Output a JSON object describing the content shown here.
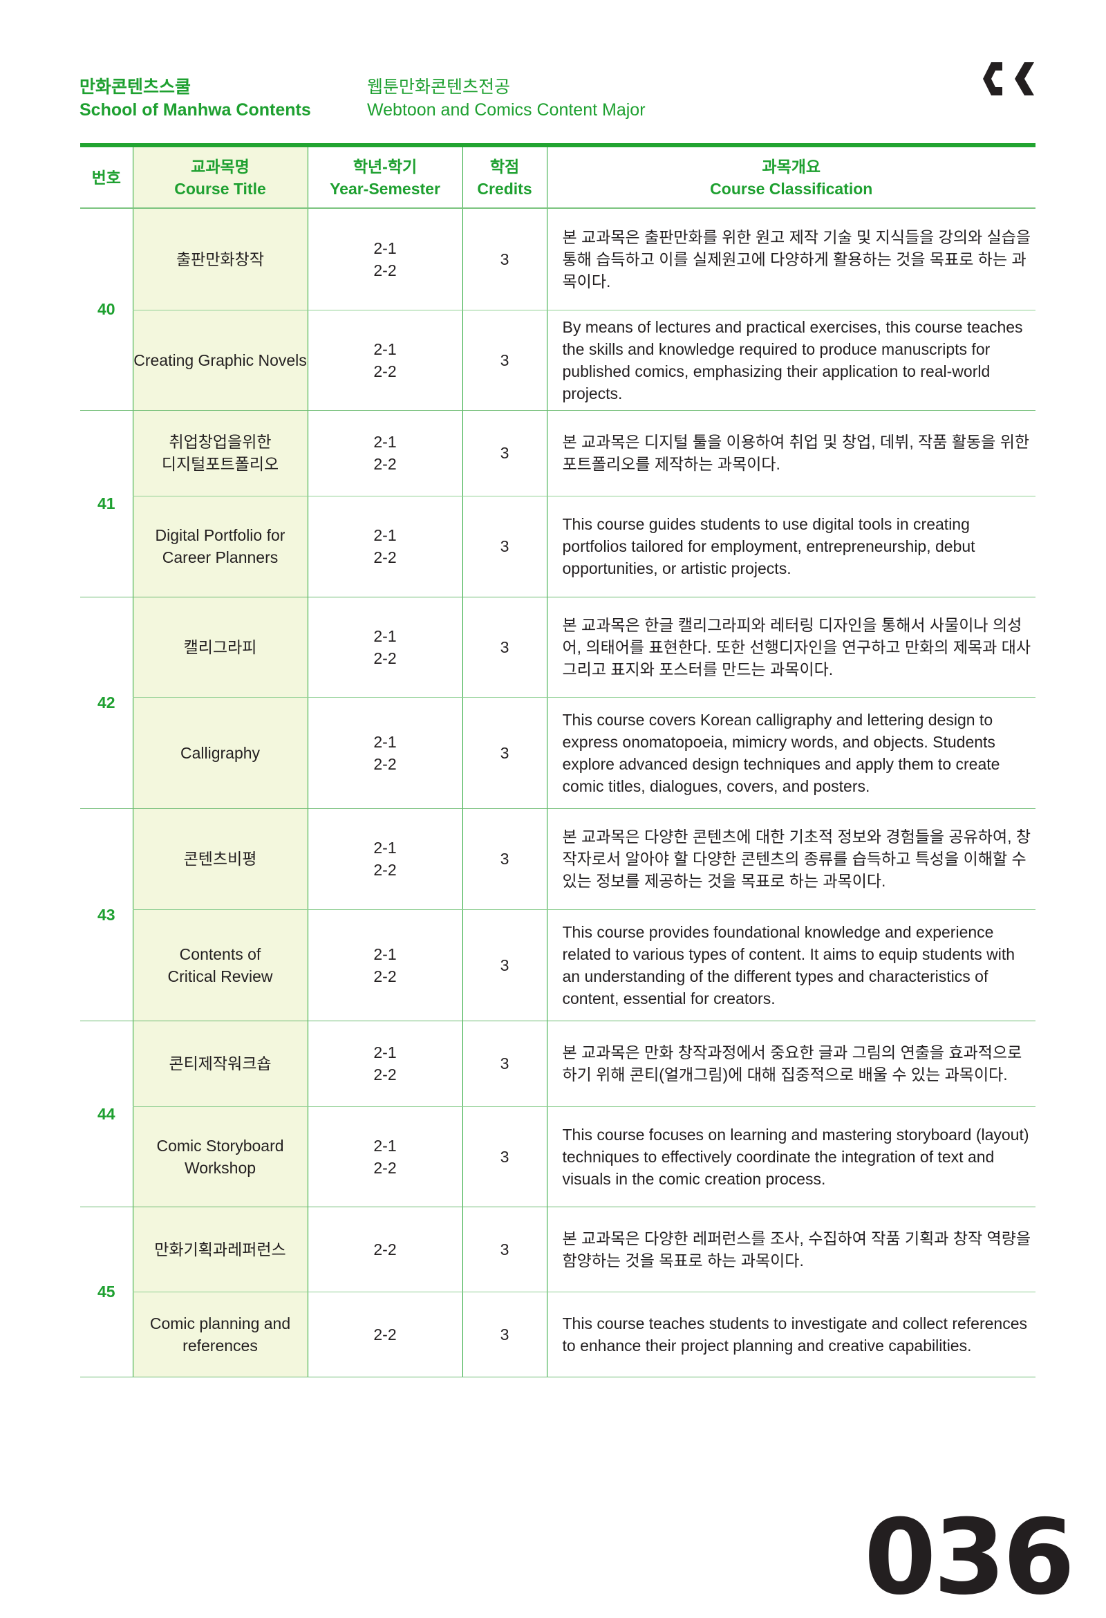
{
  "header": {
    "school_ko": "만화콘텐츠스쿨",
    "school_en": "School of Manhwa Contents",
    "major_ko": "웹툰만화콘텐츠전공",
    "major_en": "Webtoon and Comics Content Major",
    "logo": "ck-logo"
  },
  "columns": [
    {
      "ko": "번호",
      "en": ""
    },
    {
      "ko": "교과목명",
      "en": "Course Title"
    },
    {
      "ko": "학년-학기",
      "en": "Year-Semester"
    },
    {
      "ko": "학점",
      "en": "Credits"
    },
    {
      "ko": "과목개요",
      "en": "Course Classification"
    }
  ],
  "courses": [
    {
      "no": "40",
      "ko": {
        "title": "출판만화창작",
        "sem": "2-1\n2-2",
        "credits": "3",
        "desc": "본 교과목은 출판만화를 위한 원고 제작 기술 및 지식들을 강의와 실습을 통해 습득하고 이를 실제원고에 다양하게 활용하는 것을 목표로 하는 과목이다."
      },
      "en": {
        "title": "Creating Graphic Novels",
        "sem": "2-1\n2-2",
        "credits": "3",
        "desc": "By means of lectures and practical exercises, this course teaches the skills and knowledge required to produce manuscripts for published comics, emphasizing their application to real-world projects."
      }
    },
    {
      "no": "41",
      "ko": {
        "title": "취업창업을위한\n디지털포트폴리오",
        "sem": "2-1\n2-2",
        "credits": "3",
        "desc": "본 교과목은 디지털 툴을 이용하여 취업 및 창업, 데뷔, 작품 활동을 위한 포트폴리오를 제작하는 과목이다."
      },
      "en": {
        "title": "Digital Portfolio for\nCareer Planners",
        "sem": "2-1\n2-2",
        "credits": "3",
        "desc": "This course guides students to use digital tools in creating portfolios tailored for employment, entrepreneurship, debut opportunities, or artistic projects."
      }
    },
    {
      "no": "42",
      "ko": {
        "title": "캘리그라피",
        "sem": "2-1\n2-2",
        "credits": "3",
        "desc": "본 교과목은 한글 캘리그라피와 레터링 디자인을 통해서 사물이나 의성어, 의태어를 표현한다. 또한 선행디자인을 연구하고 만화의 제목과 대사 그리고 표지와 포스터를 만드는 과목이다."
      },
      "en": {
        "title": "Calligraphy",
        "sem": "2-1\n2-2",
        "credits": "3",
        "desc": "This course covers Korean calligraphy and lettering design to express onomatopoeia, mimicry words, and objects. Students explore advanced design techniques and apply them to create comic titles, dialogues, covers, and posters."
      }
    },
    {
      "no": "43",
      "ko": {
        "title": "콘텐츠비평",
        "sem": "2-1\n2-2",
        "credits": "3",
        "desc": "본 교과목은 다양한 콘텐츠에 대한 기초적 정보와 경험들을 공유하여, 창작자로서 알아야 할 다양한 콘텐츠의 종류를 습득하고 특성을 이해할 수 있는 정보를 제공하는 것을 목표로 하는 과목이다."
      },
      "en": {
        "title": "Contents of\nCritical Review",
        "sem": "2-1\n2-2",
        "credits": "3",
        "desc": "This course provides foundational knowledge and experience related to various types of content. It aims to equip students with an understanding of the different types and characteristics of content, essential for creators."
      }
    },
    {
      "no": "44",
      "ko": {
        "title": "콘티제작워크숍",
        "sem": "2-1\n2-2",
        "credits": "3",
        "desc": "본 교과목은 만화 창작과정에서 중요한 글과 그림의 연출을 효과적으로 하기 위해 콘티(얼개그림)에 대해 집중적으로 배울 수 있는 과목이다."
      },
      "en": {
        "title": "Comic Storyboard\nWorkshop",
        "sem": "2-1\n2-2",
        "credits": "3",
        "desc": "This course focuses on learning and mastering storyboard (layout) techniques to effectively coordinate the integration of text and visuals in the comic creation process."
      }
    },
    {
      "no": "45",
      "ko": {
        "title": "만화기획과레퍼런스",
        "sem": "2-2",
        "credits": "3",
        "desc": "본 교과목은 다양한 레퍼런스를 조사, 수집하여 작품 기획과 창작 역량을 함양하는 것을 목표로 하는 과목이다."
      },
      "en": {
        "title": "Comic planning and\nreferences",
        "sem": "2-2",
        "credits": "3",
        "desc": "This course teaches students to investigate and collect references to enhance their project planning and creative capabilities."
      }
    }
  ],
  "page_number": "036",
  "colors": {
    "accent": "#22a431",
    "title_bg": "#f3f7dd"
  }
}
